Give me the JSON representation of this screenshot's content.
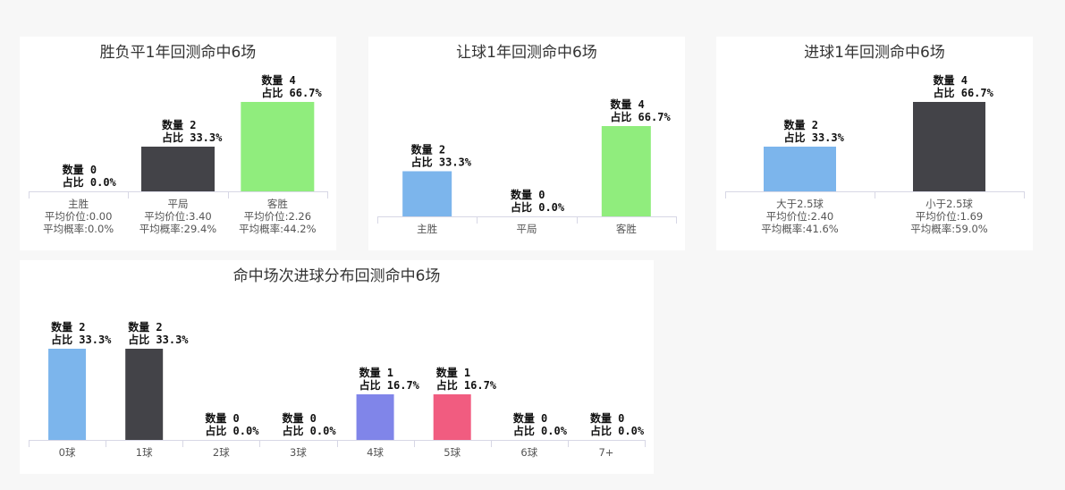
{
  "colors": {
    "blue": "#7cb5ec",
    "dark": "#434348",
    "green": "#90ed7d",
    "purple": "#8085e9",
    "pink": "#f15c80"
  },
  "chart_data": [
    {
      "type": "bar",
      "title": "胜负平1年回测命中6场",
      "categories": [
        "主胜",
        "平局",
        "客胜"
      ],
      "category_details": [
        [
          "平均价位:0.00",
          "平均概率:0.0%"
        ],
        [
          "平均价位:3.40",
          "平均概率:29.4%"
        ],
        [
          "平均价位:2.26",
          "平均概率:44.2%"
        ]
      ],
      "values": [
        0,
        2,
        4
      ],
      "ratios": [
        "0.0%",
        "33.3%",
        "66.7%"
      ],
      "colors": [
        "#7cb5ec",
        "#434348",
        "#90ed7d"
      ],
      "count_label": "数量",
      "ratio_label": "占比"
    },
    {
      "type": "bar",
      "title": "让球1年回测命中6场",
      "categories": [
        "主胜",
        "平局",
        "客胜"
      ],
      "values": [
        2,
        0,
        4
      ],
      "ratios": [
        "33.3%",
        "0.0%",
        "66.7%"
      ],
      "colors": [
        "#7cb5ec",
        "#434348",
        "#90ed7d"
      ],
      "count_label": "数量",
      "ratio_label": "占比"
    },
    {
      "type": "bar",
      "title": "进球1年回测命中6场",
      "categories": [
        "大于2.5球",
        "小于2.5球"
      ],
      "category_details": [
        [
          "平均价位:2.40",
          "平均概率:41.6%"
        ],
        [
          "平均价位:1.69",
          "平均概率:59.0%"
        ]
      ],
      "values": [
        2,
        4
      ],
      "ratios": [
        "33.3%",
        "66.7%"
      ],
      "colors": [
        "#7cb5ec",
        "#434348"
      ],
      "count_label": "数量",
      "ratio_label": "占比"
    },
    {
      "type": "bar",
      "title": "命中场次进球分布回测命中6场",
      "categories": [
        "0球",
        "1球",
        "2球",
        "3球",
        "4球",
        "5球",
        "6球",
        "7+"
      ],
      "values": [
        2,
        2,
        0,
        0,
        1,
        1,
        0,
        0
      ],
      "ratios": [
        "33.3%",
        "33.3%",
        "0.0%",
        "0.0%",
        "16.7%",
        "16.7%",
        "0.0%",
        "0.0%"
      ],
      "colors": [
        "#7cb5ec",
        "#434348",
        "#90ed7d",
        "#f7a35c",
        "#8085e9",
        "#f15c80",
        "#e4d354",
        "#2b908f"
      ],
      "count_label": "数量",
      "ratio_label": "占比"
    }
  ]
}
